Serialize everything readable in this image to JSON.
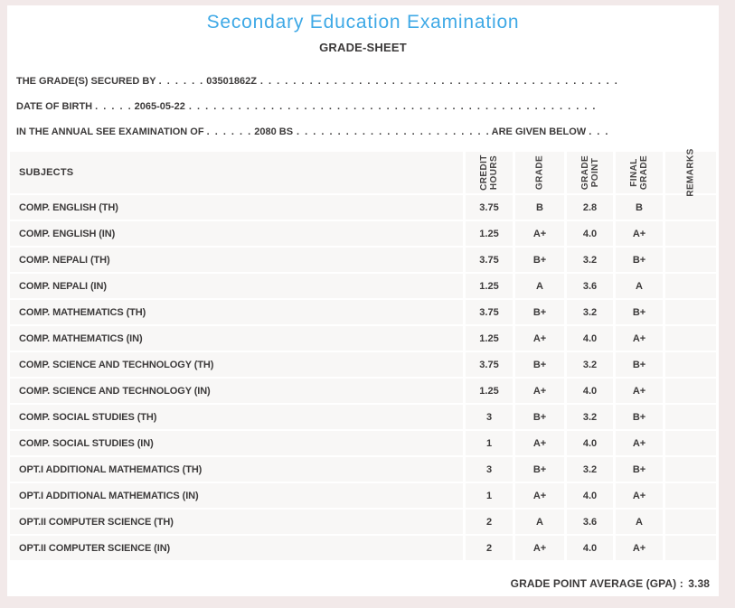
{
  "header": {
    "title": "Secondary Education Examination",
    "subtitle": "GRADE-SHEET"
  },
  "info": {
    "secured_by": {
      "label": "THE GRADE(S) SECURED BY",
      "leader": ". . . . . .",
      "value": "03501862Z",
      "trailer": ". . . . . . . . . . . . . . . . . . . . . . . . . . . . . . . . . . . . . . . . . . . ."
    },
    "dob": {
      "label": "DATE OF BIRTH",
      "leader": ". . . . .",
      "value": "2065-05-22",
      "trailer": ". . . . . . . . . . . . . . . . . . . . . . . . . . . . . . . . . . . . . . . . . . . . . . . . . ."
    },
    "exam": {
      "label": "IN THE ANNUAL SEE EXAMINATION OF",
      "leader": ". . . . . .",
      "value": "2080 BS",
      "trailer": ". . . . . . . . . . . . . . . . . . . . . . . .",
      "suffix": "ARE GIVEN BELOW",
      "suffix_trailer": ". . ."
    }
  },
  "table": {
    "headers": {
      "subjects": "SUBJECTS",
      "credit_hours": "CREDIT\nHOURS",
      "grade": "GRADE",
      "grade_point": "GRADE\nPOINT",
      "final_grade": "FINAL\nGRADE",
      "remarks": "REMARKS"
    },
    "rows": [
      {
        "subject": "COMP. ENGLISH (TH)",
        "credit": "3.75",
        "grade": "B",
        "point": "2.8",
        "final": "B",
        "remarks": ""
      },
      {
        "subject": "COMP. ENGLISH (IN)",
        "credit": "1.25",
        "grade": "A+",
        "point": "4.0",
        "final": "A+",
        "remarks": ""
      },
      {
        "subject": "COMP. NEPALI (TH)",
        "credit": "3.75",
        "grade": "B+",
        "point": "3.2",
        "final": "B+",
        "remarks": ""
      },
      {
        "subject": "COMP. NEPALI (IN)",
        "credit": "1.25",
        "grade": "A",
        "point": "3.6",
        "final": "A",
        "remarks": ""
      },
      {
        "subject": "COMP. MATHEMATICS (TH)",
        "credit": "3.75",
        "grade": "B+",
        "point": "3.2",
        "final": "B+",
        "remarks": ""
      },
      {
        "subject": "COMP. MATHEMATICS (IN)",
        "credit": "1.25",
        "grade": "A+",
        "point": "4.0",
        "final": "A+",
        "remarks": ""
      },
      {
        "subject": "COMP. SCIENCE AND TECHNOLOGY (TH)",
        "credit": "3.75",
        "grade": "B+",
        "point": "3.2",
        "final": "B+",
        "remarks": ""
      },
      {
        "subject": "COMP. SCIENCE AND TECHNOLOGY (IN)",
        "credit": "1.25",
        "grade": "A+",
        "point": "4.0",
        "final": "A+",
        "remarks": ""
      },
      {
        "subject": "COMP. SOCIAL STUDIES (TH)",
        "credit": "3",
        "grade": "B+",
        "point": "3.2",
        "final": "B+",
        "remarks": ""
      },
      {
        "subject": "COMP. SOCIAL STUDIES (IN)",
        "credit": "1",
        "grade": "A+",
        "point": "4.0",
        "final": "A+",
        "remarks": ""
      },
      {
        "subject": "OPT.I ADDITIONAL MATHEMATICS (TH)",
        "credit": "3",
        "grade": "B+",
        "point": "3.2",
        "final": "B+",
        "remarks": ""
      },
      {
        "subject": "OPT.I ADDITIONAL MATHEMATICS (IN)",
        "credit": "1",
        "grade": "A+",
        "point": "4.0",
        "final": "A+",
        "remarks": ""
      },
      {
        "subject": "OPT.II COMPUTER SCIENCE (TH)",
        "credit": "2",
        "grade": "A",
        "point": "3.6",
        "final": "A",
        "remarks": ""
      },
      {
        "subject": "OPT.II COMPUTER SCIENCE (IN)",
        "credit": "2",
        "grade": "A+",
        "point": "4.0",
        "final": "A+",
        "remarks": ""
      }
    ]
  },
  "footer": {
    "gpa_label": "GRADE POINT AVERAGE (GPA) :",
    "gpa_value": "3.38"
  },
  "colors": {
    "accent": "#3fa9e6",
    "text": "#3c3a3a",
    "row-bg": "#f8f7f6",
    "outer-bg": "#f2e9e9",
    "card-bg": "#ffffff"
  }
}
